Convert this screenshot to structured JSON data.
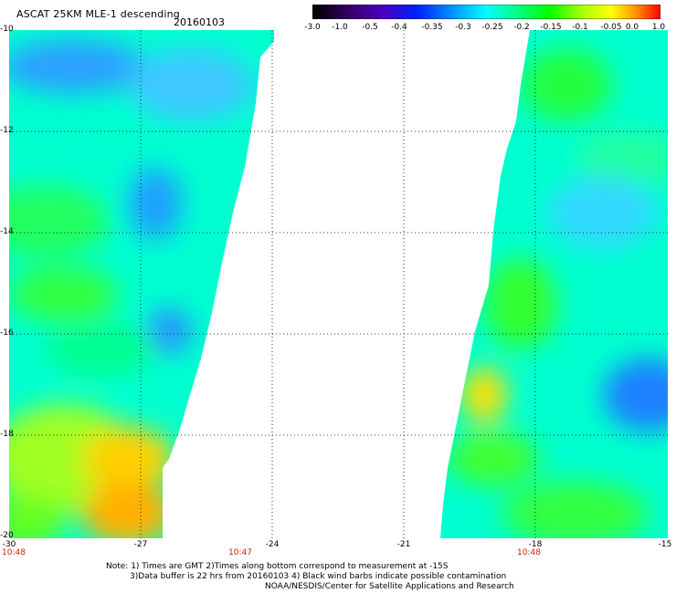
{
  "header": {
    "title": "ASCAT 25KM MLE-1 descending",
    "date": "20160103"
  },
  "colorbar": {
    "labels": [
      "-3.0",
      "-1.0",
      "-0.5",
      "-0.4",
      "-0.35",
      "-0.3",
      "-0.25",
      "-0.2",
      "-0.15",
      "-0.1",
      "-0.05",
      "0.0",
      "1.0"
    ],
    "colors": [
      "#000000",
      "#400080",
      "#0000ff",
      "#0080ff",
      "#00ffff",
      "#00ff80",
      "#00ff00",
      "#ffff00",
      "#ff8000",
      "#ff0000"
    ]
  },
  "map": {
    "y_ticks": [
      "-10",
      "-12",
      "-14",
      "-16",
      "-18",
      "-20"
    ],
    "x_ticks": [
      "-30",
      "-27",
      "-24",
      "-21",
      "-18",
      "-15"
    ],
    "times": [
      "10:48",
      "10:47",
      "10:48"
    ]
  },
  "notes": {
    "line1": "Note: 1) Times are GMT 2)Times along bottom correspond to measurement at -15S",
    "line2": "3)Data buffer is 22 hrs from 20160103 4) Black wind barbs indicate possible contamination",
    "line3": "NOAA/NESDIS/Center for Satellite Applications and Research"
  }
}
